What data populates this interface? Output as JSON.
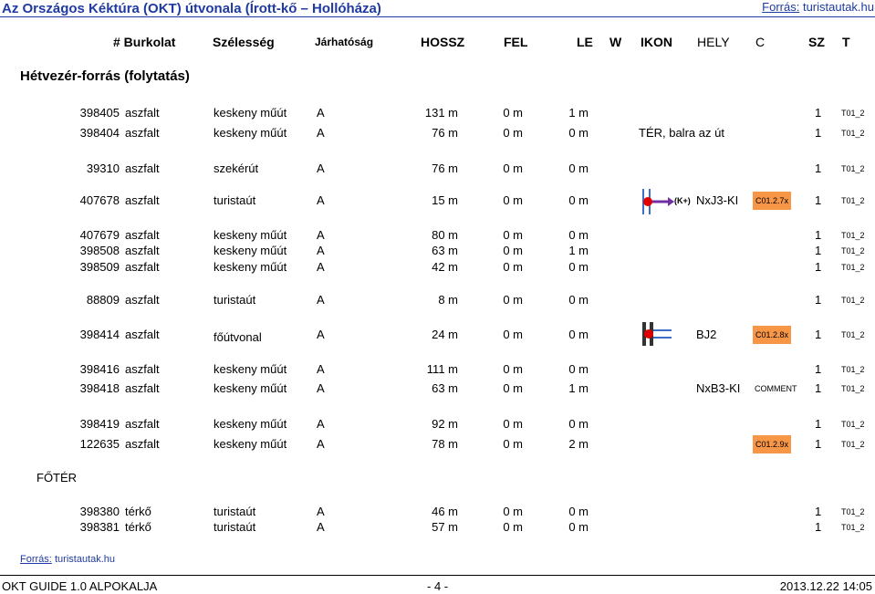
{
  "header": {
    "title": "Az Országos Kéktúra (OKT) útvonala (Írott-kő – Hollóháza)",
    "source_label": "Forrás:",
    "source_link": "turistautak.hu"
  },
  "columns": {
    "id": "# Burkolat",
    "width": "Szélesség",
    "pass": "Járhatóság",
    "length": "HOSSZ",
    "up": "FEL",
    "down": "LE",
    "w": "W",
    "icon": "IKON",
    "place": "HELY",
    "code": "C",
    "sz": "SZ",
    "t": "T"
  },
  "sections": [
    {
      "title": "Hétvezér-forrás (folytatás)",
      "rows": [
        {
          "id": "398405",
          "surface": "aszfalt",
          "width": "keskeny műút",
          "pass": "A",
          "length": "131 m",
          "up": "0 m",
          "down": "1 m",
          "sz": "1",
          "t": "T01_2"
        },
        {
          "id": "398404",
          "surface": "aszfalt",
          "width": "keskeny műút",
          "pass": "A",
          "length": "76 m",
          "up": "0 m",
          "down": "0 m",
          "note": "TÉR, balra az út",
          "sz": "1",
          "t": "T01_2"
        },
        {
          "id": "39310",
          "surface": "aszfalt",
          "width": "szekérút",
          "pass": "A",
          "length": "76 m",
          "up": "0 m",
          "down": "0 m",
          "sz": "1",
          "t": "T01_2"
        },
        {
          "id": "407678",
          "surface": "aszfalt",
          "width": "turistaút",
          "pass": "A",
          "length": "15 m",
          "up": "0 m",
          "down": "0 m",
          "tag": "(K+)",
          "place": "NxJ3-KI",
          "code": "C01.2.7x",
          "sz": "1",
          "t": "T01_2"
        },
        {
          "id": "407679",
          "surface": "aszfalt",
          "width": "keskeny műút",
          "pass": "A",
          "length": "80 m",
          "up": "0 m",
          "down": "0 m",
          "sz": "1",
          "t": "T01_2"
        },
        {
          "id": "398508",
          "surface": "aszfalt",
          "width": "keskeny műút",
          "pass": "A",
          "length": "63 m",
          "up": "0 m",
          "down": "1 m",
          "sz": "1",
          "t": "T01_2"
        },
        {
          "id": "398509",
          "surface": "aszfalt",
          "width": "keskeny műút",
          "pass": "A",
          "length": "42 m",
          "up": "0 m",
          "down": "0 m",
          "sz": "1",
          "t": "T01_2"
        },
        {
          "id": "88809",
          "surface": "aszfalt",
          "width": "turistaút",
          "pass": "A",
          "length": "8 m",
          "up": "0 m",
          "down": "0 m",
          "sz": "1",
          "t": "T01_2"
        },
        {
          "id": "398414",
          "surface": "aszfalt",
          "width": "főútvonal",
          "pass": "A",
          "length": "24 m",
          "up": "0 m",
          "down": "0 m",
          "place": "BJ2",
          "code": "C01.2.8x",
          "sz": "1",
          "t": "T01_2"
        },
        {
          "id": "398416",
          "surface": "aszfalt",
          "width": "keskeny műút",
          "pass": "A",
          "length": "111 m",
          "up": "0 m",
          "down": "0 m",
          "sz": "1",
          "t": "T01_2"
        },
        {
          "id": "398418",
          "surface": "aszfalt",
          "width": "keskeny műút",
          "pass": "A",
          "length": "63 m",
          "up": "0 m",
          "down": "1 m",
          "place": "NxB3-KI",
          "comment": "COMMENT",
          "sz": "1",
          "t": "T01_2"
        },
        {
          "id": "398419",
          "surface": "aszfalt",
          "width": "keskeny műút",
          "pass": "A",
          "length": "92 m",
          "up": "0 m",
          "down": "0 m",
          "sz": "1",
          "t": "T01_2"
        },
        {
          "id": "122635",
          "surface": "aszfalt",
          "width": "keskeny műút",
          "pass": "A",
          "length": "78 m",
          "up": "0 m",
          "down": "2 m",
          "code": "C01.2.9x",
          "sz": "1",
          "t": "T01_2"
        }
      ]
    },
    {
      "title": "FŐTÉR",
      "rows": [
        {
          "id": "398380",
          "surface": "térkő",
          "width": "turistaút",
          "pass": "A",
          "length": "46 m",
          "up": "0 m",
          "down": "0 m",
          "sz": "1",
          "t": "T01_2"
        },
        {
          "id": "398381",
          "surface": "térkő",
          "width": "turistaút",
          "pass": "A",
          "length": "57 m",
          "up": "0 m",
          "down": "0 m",
          "sz": "1",
          "t": "T01_2"
        }
      ]
    }
  ],
  "footer": {
    "source_label": "Forrás:",
    "source_link": "turistautak.hu",
    "left": "OKT GUIDE 1.0 ALPOKALJA",
    "center": "- 4 -",
    "right": "2013.12.22 14:05"
  }
}
